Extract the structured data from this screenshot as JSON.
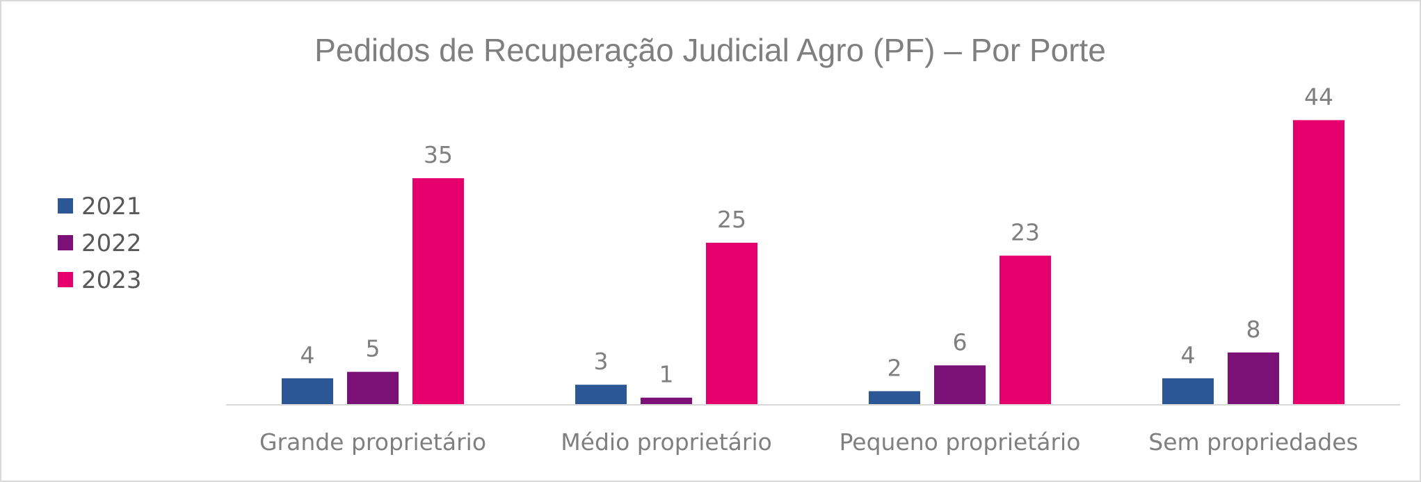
{
  "chart_data": {
    "type": "bar",
    "title": "Pedidos de Recuperação Judicial Agro (PF) – Por Porte",
    "xlabel": "",
    "ylabel": "",
    "categories": [
      "Grande proprietário",
      "Médio proprietário",
      "Pequeno proprietário",
      "Sem propriedades"
    ],
    "series": [
      {
        "name": "2021",
        "color": "#2b5797",
        "values": [
          4,
          3,
          2,
          4
        ]
      },
      {
        "name": "2022",
        "color": "#7b1177",
        "values": [
          5,
          1,
          6,
          8
        ]
      },
      {
        "name": "2023",
        "color": "#e6006e",
        "values": [
          35,
          25,
          23,
          44
        ]
      }
    ],
    "ylim": [
      0,
      44
    ],
    "grid": false,
    "data_labels": true,
    "legend_position": "left"
  }
}
